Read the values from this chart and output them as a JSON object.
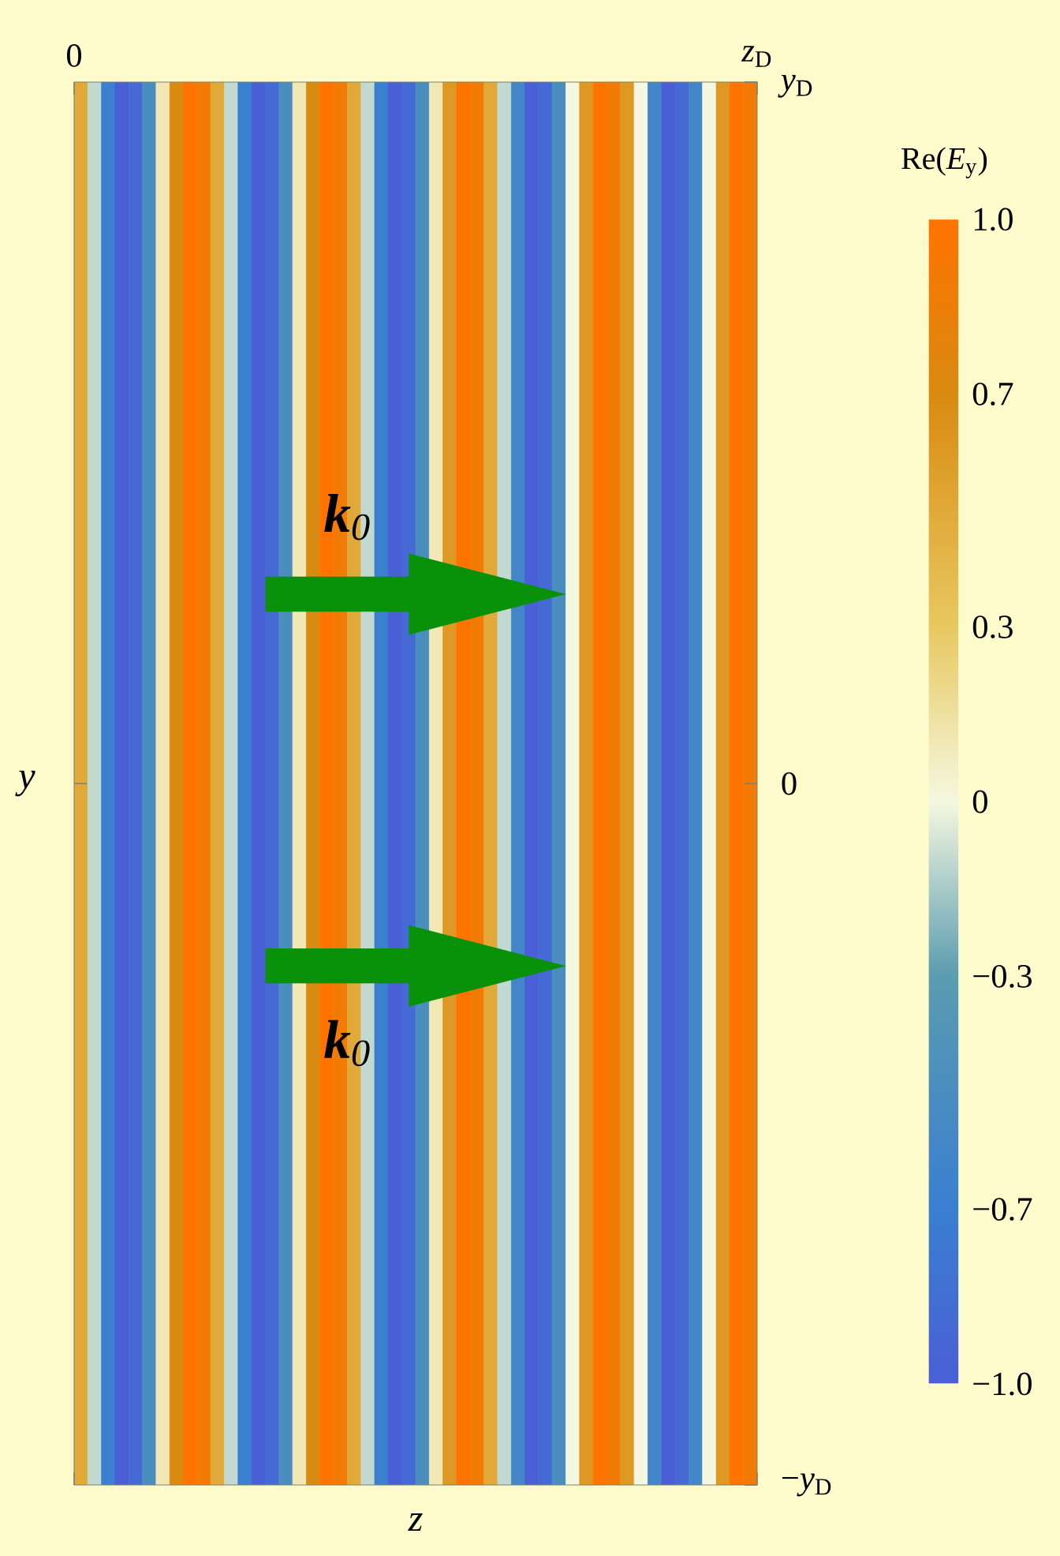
{
  "chart_data": {
    "type": "heatmap",
    "xlabel": "z",
    "ylabel": "y",
    "clabel": "Re(*E*$_{y}$)",
    "categories": [
      null,
      null,
      null,
      null,
      null,
      null,
      null,
      null,
      null,
      null,
      null,
      null,
      null,
      null,
      null,
      null,
      null,
      null,
      null,
      null,
      null,
      null,
      null,
      null,
      null,
      null,
      null,
      null,
      null,
      null,
      null,
      null,
      null,
      null,
      null,
      null,
      null,
      null,
      null,
      null,
      null,
      null,
      null,
      null,
      null,
      null,
      null,
      null,
      null,
      null
    ],
    "y_categories": [
      null
    ],
    "cells": [
      [
        0.5,
        -0.1,
        -0.7,
        -1.0,
        -0.9,
        -0.5,
        0.1,
        0.7,
        1.0,
        0.9,
        0.5,
        -0.1,
        -0.7,
        -1.0,
        -0.9,
        -0.5,
        0.1,
        0.7,
        1.0,
        0.9,
        0.5,
        -0.1,
        -0.7,
        -1.0,
        -0.9,
        -0.5,
        0.1,
        0.6,
        1.0,
        0.9,
        0.5,
        -0.1,
        -0.6,
        -1.0,
        -0.9,
        -0.5,
        0.0,
        0.6,
        1.0,
        0.9,
        0.6,
        0.0,
        -0.6,
        -1.0,
        -0.9,
        -0.6,
        0.0,
        0.6,
        1.0,
        0.9
      ]
    ],
    "clim": [
      -1,
      1
    ],
    "cticks": [
      {
        "value": -1.0,
        "label": "−1.0"
      },
      {
        "value": -0.7,
        "label": "−0.7"
      },
      {
        "value": -0.3,
        "label": "−0.3"
      },
      {
        "value": 0,
        "label": "0"
      },
      {
        "value": 0.3,
        "label": "0.3"
      },
      {
        "value": 0.7,
        "label": "0.7"
      },
      {
        "value": 1.0,
        "label": "1.0"
      }
    ],
    "annotations": [
      "0",
      "*z*$_{D}$",
      "*y*$_{D}$",
      "0",
      "−*y*$_{D}$",
      "**k**$_{0}$",
      "**k**$_{0}$"
    ]
  }
}
